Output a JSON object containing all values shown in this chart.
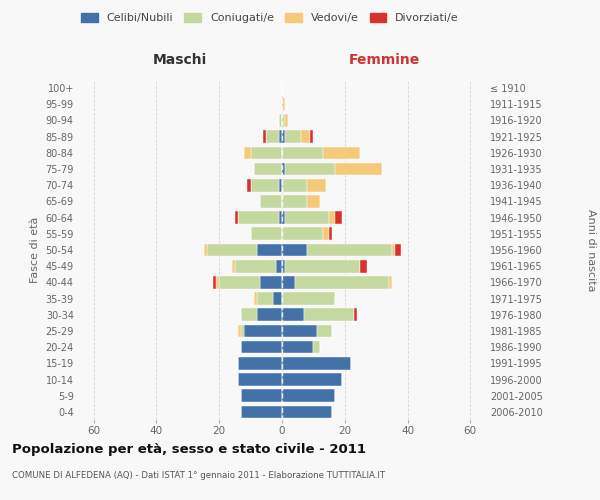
{
  "age_groups": [
    "0-4",
    "5-9",
    "10-14",
    "15-19",
    "20-24",
    "25-29",
    "30-34",
    "35-39",
    "40-44",
    "45-49",
    "50-54",
    "55-59",
    "60-64",
    "65-69",
    "70-74",
    "75-79",
    "80-84",
    "85-89",
    "90-94",
    "95-99",
    "100+"
  ],
  "birth_years": [
    "2006-2010",
    "2001-2005",
    "1996-2000",
    "1991-1995",
    "1986-1990",
    "1981-1985",
    "1976-1980",
    "1971-1975",
    "1966-1970",
    "1961-1965",
    "1956-1960",
    "1951-1955",
    "1946-1950",
    "1941-1945",
    "1936-1940",
    "1931-1935",
    "1926-1930",
    "1921-1925",
    "1916-1920",
    "1911-1915",
    "≤ 1910"
  ],
  "male": {
    "celibi": [
      13,
      13,
      14,
      14,
      13,
      12,
      8,
      3,
      7,
      2,
      8,
      0,
      1,
      0,
      1,
      0,
      0,
      1,
      0,
      0,
      0
    ],
    "coniugati": [
      0,
      0,
      0,
      0,
      0,
      1,
      5,
      5,
      13,
      13,
      16,
      10,
      13,
      7,
      9,
      9,
      10,
      4,
      1,
      0,
      0
    ],
    "vedovi": [
      0,
      0,
      0,
      0,
      0,
      1,
      0,
      1,
      1,
      1,
      1,
      0,
      0,
      0,
      0,
      0,
      2,
      0,
      0,
      0,
      0
    ],
    "divorziati": [
      0,
      0,
      0,
      0,
      0,
      0,
      0,
      0,
      1,
      0,
      0,
      0,
      1,
      0,
      1,
      0,
      0,
      1,
      0,
      0,
      0
    ]
  },
  "female": {
    "nubili": [
      16,
      17,
      19,
      22,
      10,
      11,
      7,
      0,
      4,
      1,
      8,
      0,
      1,
      0,
      0,
      1,
      0,
      1,
      0,
      0,
      0
    ],
    "coniugate": [
      0,
      0,
      0,
      0,
      2,
      5,
      16,
      17,
      30,
      24,
      27,
      13,
      14,
      8,
      8,
      16,
      13,
      5,
      1,
      0,
      0
    ],
    "vedove": [
      0,
      0,
      0,
      0,
      0,
      0,
      0,
      0,
      1,
      0,
      1,
      2,
      2,
      4,
      6,
      15,
      12,
      3,
      1,
      1,
      0
    ],
    "divorziate": [
      0,
      0,
      0,
      0,
      0,
      0,
      1,
      0,
      0,
      2,
      2,
      1,
      2,
      0,
      0,
      0,
      0,
      1,
      0,
      0,
      0
    ]
  },
  "colors": {
    "celibi": "#4472a8",
    "coniugati": "#c5d8a0",
    "vedovi": "#f5c97a",
    "divorziati": "#d93030"
  },
  "xlim": 65,
  "title": "Popolazione per età, sesso e stato civile - 2011",
  "subtitle": "COMUNE DI ALFEDENA (AQ) - Dati ISTAT 1° gennaio 2011 - Elaborazione TUTTITALIA.IT",
  "ylabel_left": "Fasce di età",
  "ylabel_right": "Anni di nascita",
  "legend_labels": [
    "Celibi/Nubili",
    "Coniugati/e",
    "Vedovi/e",
    "Divorziati/e"
  ],
  "maschi_label": "Maschi",
  "femmine_label": "Femmine",
  "bg_color": "#f8f8f8",
  "grid_color": "#cccccc"
}
